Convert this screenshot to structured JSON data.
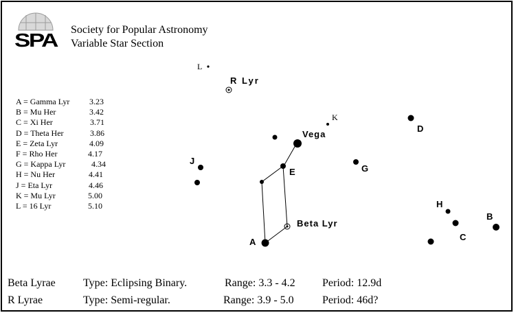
{
  "header": {
    "logo_text": "SPA",
    "org_name": "Society for Popular Astronomy",
    "section_name": "Variable Star Section"
  },
  "legend": [
    {
      "key": "A = Gamma Lyr",
      "mag": "3.23"
    },
    {
      "key": "B = Mu Her",
      "mag": "3.42"
    },
    {
      "key": "C = Xi Her",
      "mag": "3.71"
    },
    {
      "key": "D = Theta Her",
      "mag": "3.86"
    },
    {
      "key": "E = Zeta Lyr",
      "mag": "4.09"
    },
    {
      "key": "F = Rho Her",
      "mag": "4.17"
    },
    {
      "key": "G = Kappa Lyr",
      "mag": "4.34"
    },
    {
      "key": "H = Nu Her",
      "mag": "4.41"
    },
    {
      "key": "J = Eta Lyr",
      "mag": "4.46"
    },
    {
      "key": "K = Mu Lyr",
      "mag": "5.00"
    },
    {
      "key": "L = 16 Lyr",
      "mag": "5.10"
    }
  ],
  "labels": {
    "vega": "Vega",
    "beta_lyr": "Beta Lyr",
    "r_lyr": "R Lyr",
    "A": "A",
    "B": "B",
    "C": "C",
    "D": "D",
    "E": "E",
    "G": "G",
    "H": "H",
    "J": "J",
    "K": "K",
    "L": "L"
  },
  "info": {
    "beta": {
      "name": "Beta Lyrae",
      "type": "Type:  Eclipsing  Binary.",
      "range": "Range: 3.3 - 4.2",
      "period": "Period:  12.9d"
    },
    "r": {
      "name": "R  Lyrae",
      "type": "Type:  Semi-regular.",
      "range": "Range:  3.9 - 5.0",
      "period": "Period:  46d?"
    }
  }
}
